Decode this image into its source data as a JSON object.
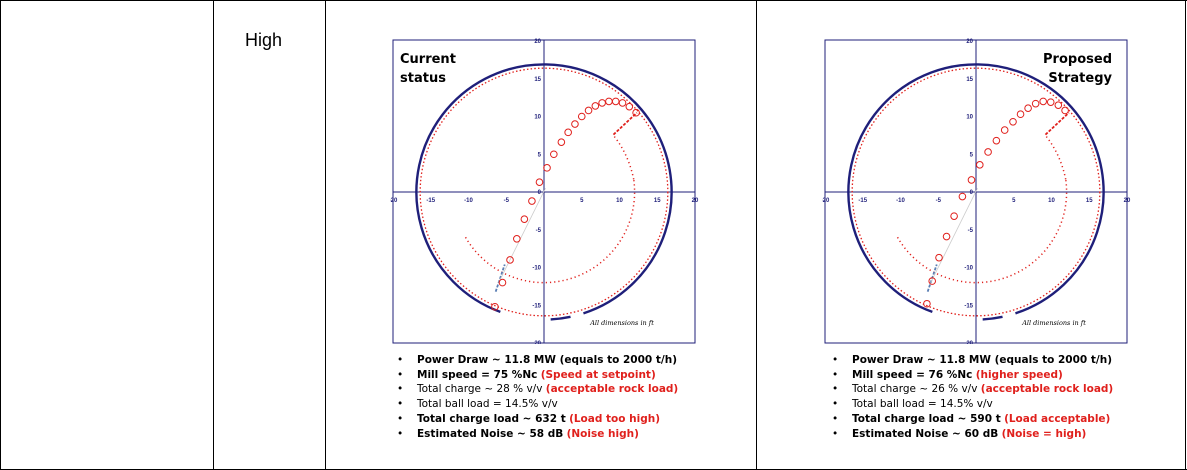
{
  "table": {
    "rating_label": "High"
  },
  "colors": {
    "mill_shell": "#1f1f7a",
    "charge_red": "#e0201c",
    "axis_navy": "#1f1f7a",
    "lifter_blue": "#5b7fb4"
  },
  "panels": [
    {
      "title_line1": "Current",
      "title_line2": "status",
      "title_align": "left",
      "ticks_x": [
        "-20",
        "-15",
        "-10",
        "-5",
        "0",
        "5",
        "10",
        "15",
        "20"
      ],
      "ticks_y": [
        "20",
        "15",
        "10",
        "5",
        "0",
        "-5",
        "-10",
        "-15",
        "-20"
      ],
      "note": "All dimensions in ft",
      "bullets": [
        {
          "bold": "Power Draw ~ 11.8 MW (equals to 2000 t/h)",
          "normal": "",
          "red": ""
        },
        {
          "bold": "Mill speed = 75 %Nc",
          "normal": "",
          "red": "(Speed at setpoint)"
        },
        {
          "bold": "",
          "normal": "Total charge ~ 28 % v/v",
          "red": "(acceptable rock load)"
        },
        {
          "bold": "",
          "normal": "Total ball load = 14.5% v/v",
          "red": ""
        },
        {
          "bold": "Total charge load ~ 632 t",
          "normal": "",
          "red": "(Load too high)"
        },
        {
          "bold": "Estimated Noise ~ 58 dB",
          "normal": "",
          "red": "(Noise high)"
        }
      ]
    },
    {
      "title_line1": "Proposed",
      "title_line2": "Strategy",
      "title_align": "right",
      "ticks_x": [
        "-20",
        "-15",
        "-10",
        "-5",
        "0",
        "5",
        "10",
        "15",
        "20"
      ],
      "ticks_y": [
        "20",
        "15",
        "10",
        "5",
        "0",
        "-5",
        "-10",
        "-15",
        "-20"
      ],
      "note": "All dimensions in ft",
      "bullets": [
        {
          "bold": "Power Draw ~ 11.8 MW (equals to 2000 t/h)",
          "normal": "",
          "red": ""
        },
        {
          "bold": "Mill speed = 76 %Nc",
          "normal": "",
          "red": "(higher speed)"
        },
        {
          "bold": "",
          "normal": "Total charge ~ 26 % v/v",
          "red": "(acceptable rock load)"
        },
        {
          "bold": "",
          "normal": "Total ball load = 14.5% v/v",
          "red": ""
        },
        {
          "bold": "Total charge load ~ 590 t",
          "normal": "",
          "red": "(Load acceptable)"
        },
        {
          "bold": "Estimated Noise ~ 60 dB",
          "normal": "",
          "red": "(Noise = high)"
        }
      ]
    }
  ]
}
